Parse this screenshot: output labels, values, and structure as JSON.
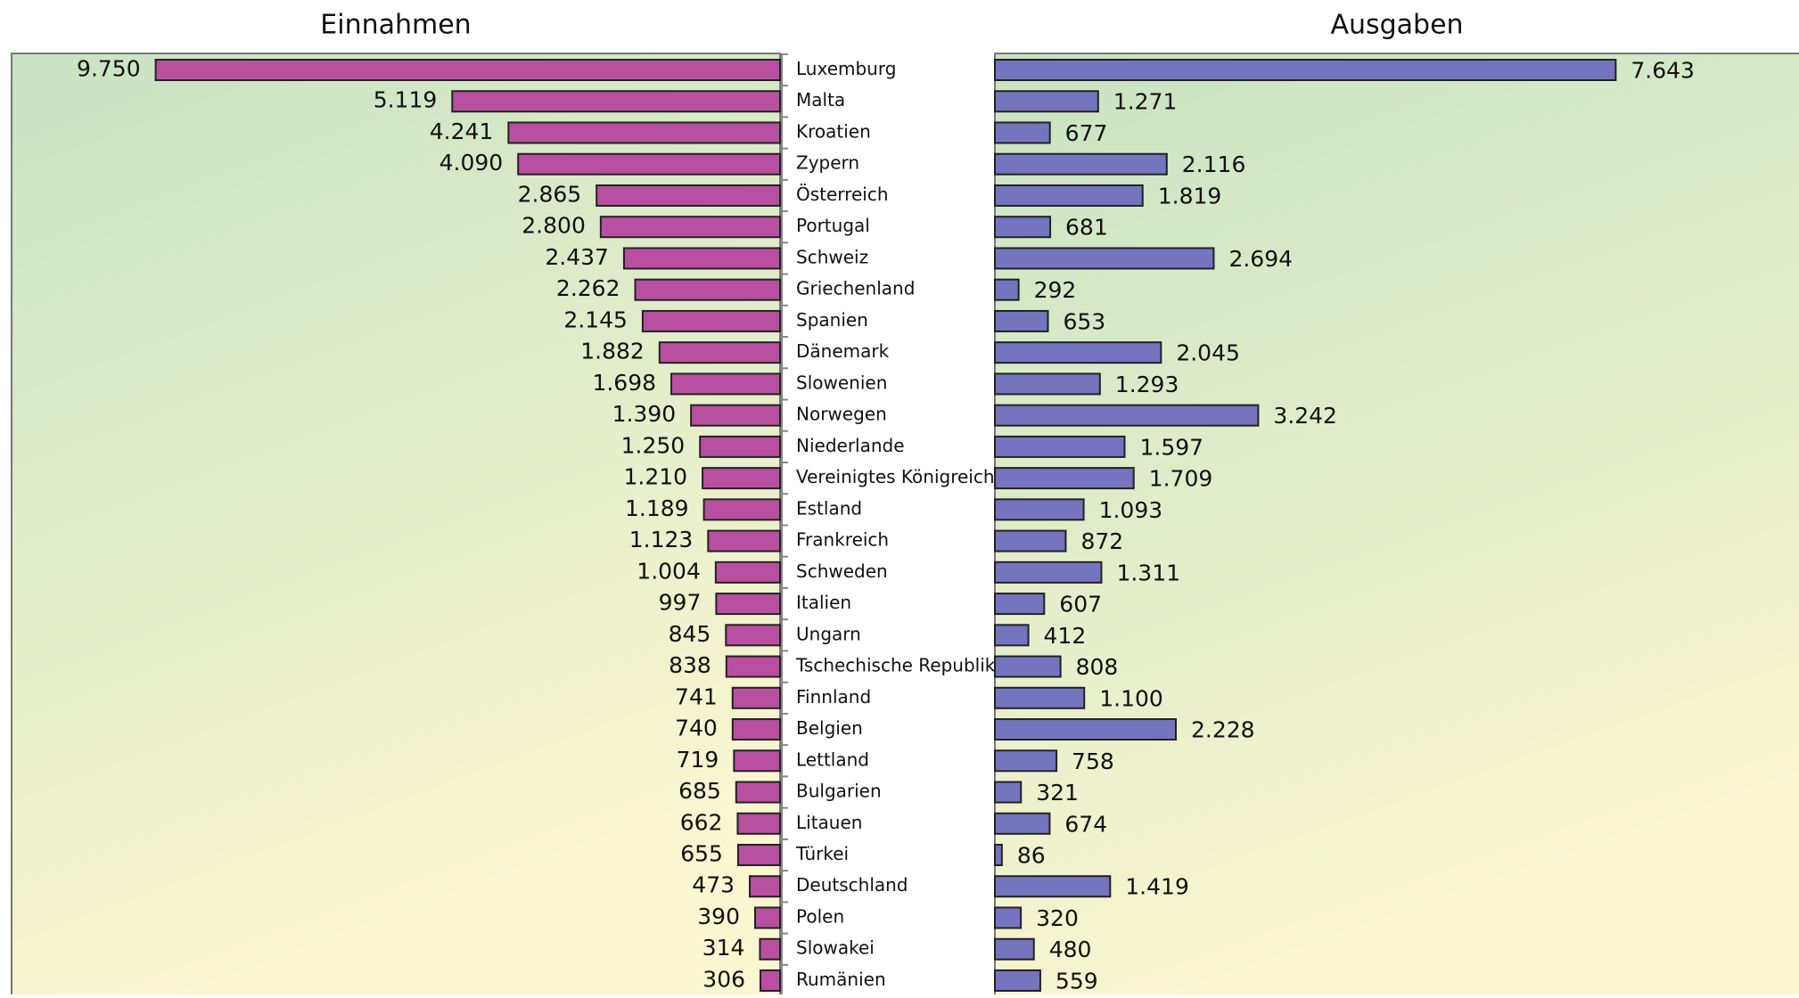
{
  "chart_data": {
    "type": "butterfly-bar",
    "categories": [
      "Luxemburg",
      "Malta",
      "Kroatien",
      "Zypern",
      "Österreich",
      "Portugal",
      "Schweiz",
      "Griechenland",
      "Spanien",
      "Dänemark",
      "Slowenien",
      "Norwegen",
      "Niederlande",
      "Vereinigtes Königreich",
      "Estland",
      "Frankreich",
      "Schweden",
      "Italien",
      "Ungarn",
      "Tschechische Republik",
      "Finnland",
      "Belgien",
      "Lettland",
      "Bulgarien",
      "Litauen",
      "Türkei",
      "Deutschland",
      "Polen",
      "Slowakei",
      "Rumänien"
    ],
    "series": [
      {
        "name": "Einnahmen",
        "color": "#b84fa0",
        "xlim": [
          0,
          12000
        ],
        "values": [
          9750,
          5119,
          4241,
          4090,
          2865,
          2800,
          2437,
          2262,
          2145,
          1882,
          1698,
          1390,
          1250,
          1210,
          1189,
          1123,
          1004,
          997,
          845,
          838,
          741,
          740,
          719,
          685,
          662,
          655,
          473,
          390,
          314,
          306
        ],
        "value_labels": [
          "9.750",
          "5.119",
          "4.241",
          "4.090",
          "2.865",
          "2.800",
          "2.437",
          "2.262",
          "2.145",
          "1.882",
          "1.698",
          "1.390",
          "1.250",
          "1.210",
          "1.189",
          "1.123",
          "1.004",
          "997",
          "845",
          "838",
          "741",
          "740",
          "719",
          "685",
          "662",
          "655",
          "473",
          "390",
          "314",
          "306"
        ]
      },
      {
        "name": "Ausgaben",
        "color": "#7474bf",
        "xlim": [
          0,
          9900
        ],
        "values": [
          7643,
          1271,
          677,
          2116,
          1819,
          681,
          2694,
          292,
          653,
          2045,
          1293,
          3242,
          1597,
          1709,
          1093,
          872,
          1311,
          607,
          412,
          808,
          1100,
          2228,
          758,
          321,
          674,
          86,
          1419,
          320,
          480,
          559
        ],
        "value_labels": [
          "7.643",
          "1.271",
          "677",
          "2.116",
          "1.819",
          "681",
          "2.694",
          "292",
          "653",
          "2.045",
          "1.293",
          "3.242",
          "1.597",
          "1.709",
          "1.093",
          "872",
          "1.311",
          "607",
          "412",
          "808",
          "1.100",
          "2.228",
          "758",
          "321",
          "674",
          "86",
          "1.419",
          "320",
          "480",
          "559"
        ]
      }
    ]
  }
}
